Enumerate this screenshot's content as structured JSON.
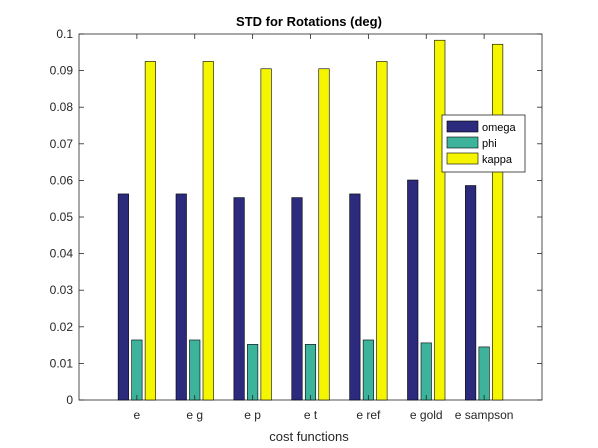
{
  "chart_data": {
    "type": "bar",
    "title": "STD for Rotations (deg)",
    "xlabel": "cost functions",
    "ylabel": "",
    "ylim": [
      0,
      0.1
    ],
    "yticks": [
      0,
      0.01,
      0.02,
      0.03,
      0.04,
      0.05,
      0.06,
      0.07,
      0.08,
      0.09,
      0.1
    ],
    "ytick_labels": [
      "0",
      "0.01",
      "0.02",
      "0.03",
      "0.04",
      "0.05",
      "0.06",
      "0.07",
      "0.08",
      "0.09",
      "0.1"
    ],
    "categories": [
      "e",
      "e g",
      "e p",
      "e t",
      "e ref",
      "e gold",
      "e sampson"
    ],
    "series": [
      {
        "name": "omega",
        "color": "#2b2a7d",
        "values": [
          0.0563,
          0.0563,
          0.0553,
          0.0553,
          0.0563,
          0.0601,
          0.0586
        ]
      },
      {
        "name": "phi",
        "color": "#3cb39a",
        "values": [
          0.0164,
          0.0164,
          0.0152,
          0.0152,
          0.0164,
          0.0156,
          0.0145
        ]
      },
      {
        "name": "kappa",
        "color": "#f5f500",
        "values": [
          0.0925,
          0.0925,
          0.0905,
          0.0905,
          0.0925,
          0.0983,
          0.0972
        ]
      }
    ],
    "legend_position": "right",
    "grid": false
  }
}
